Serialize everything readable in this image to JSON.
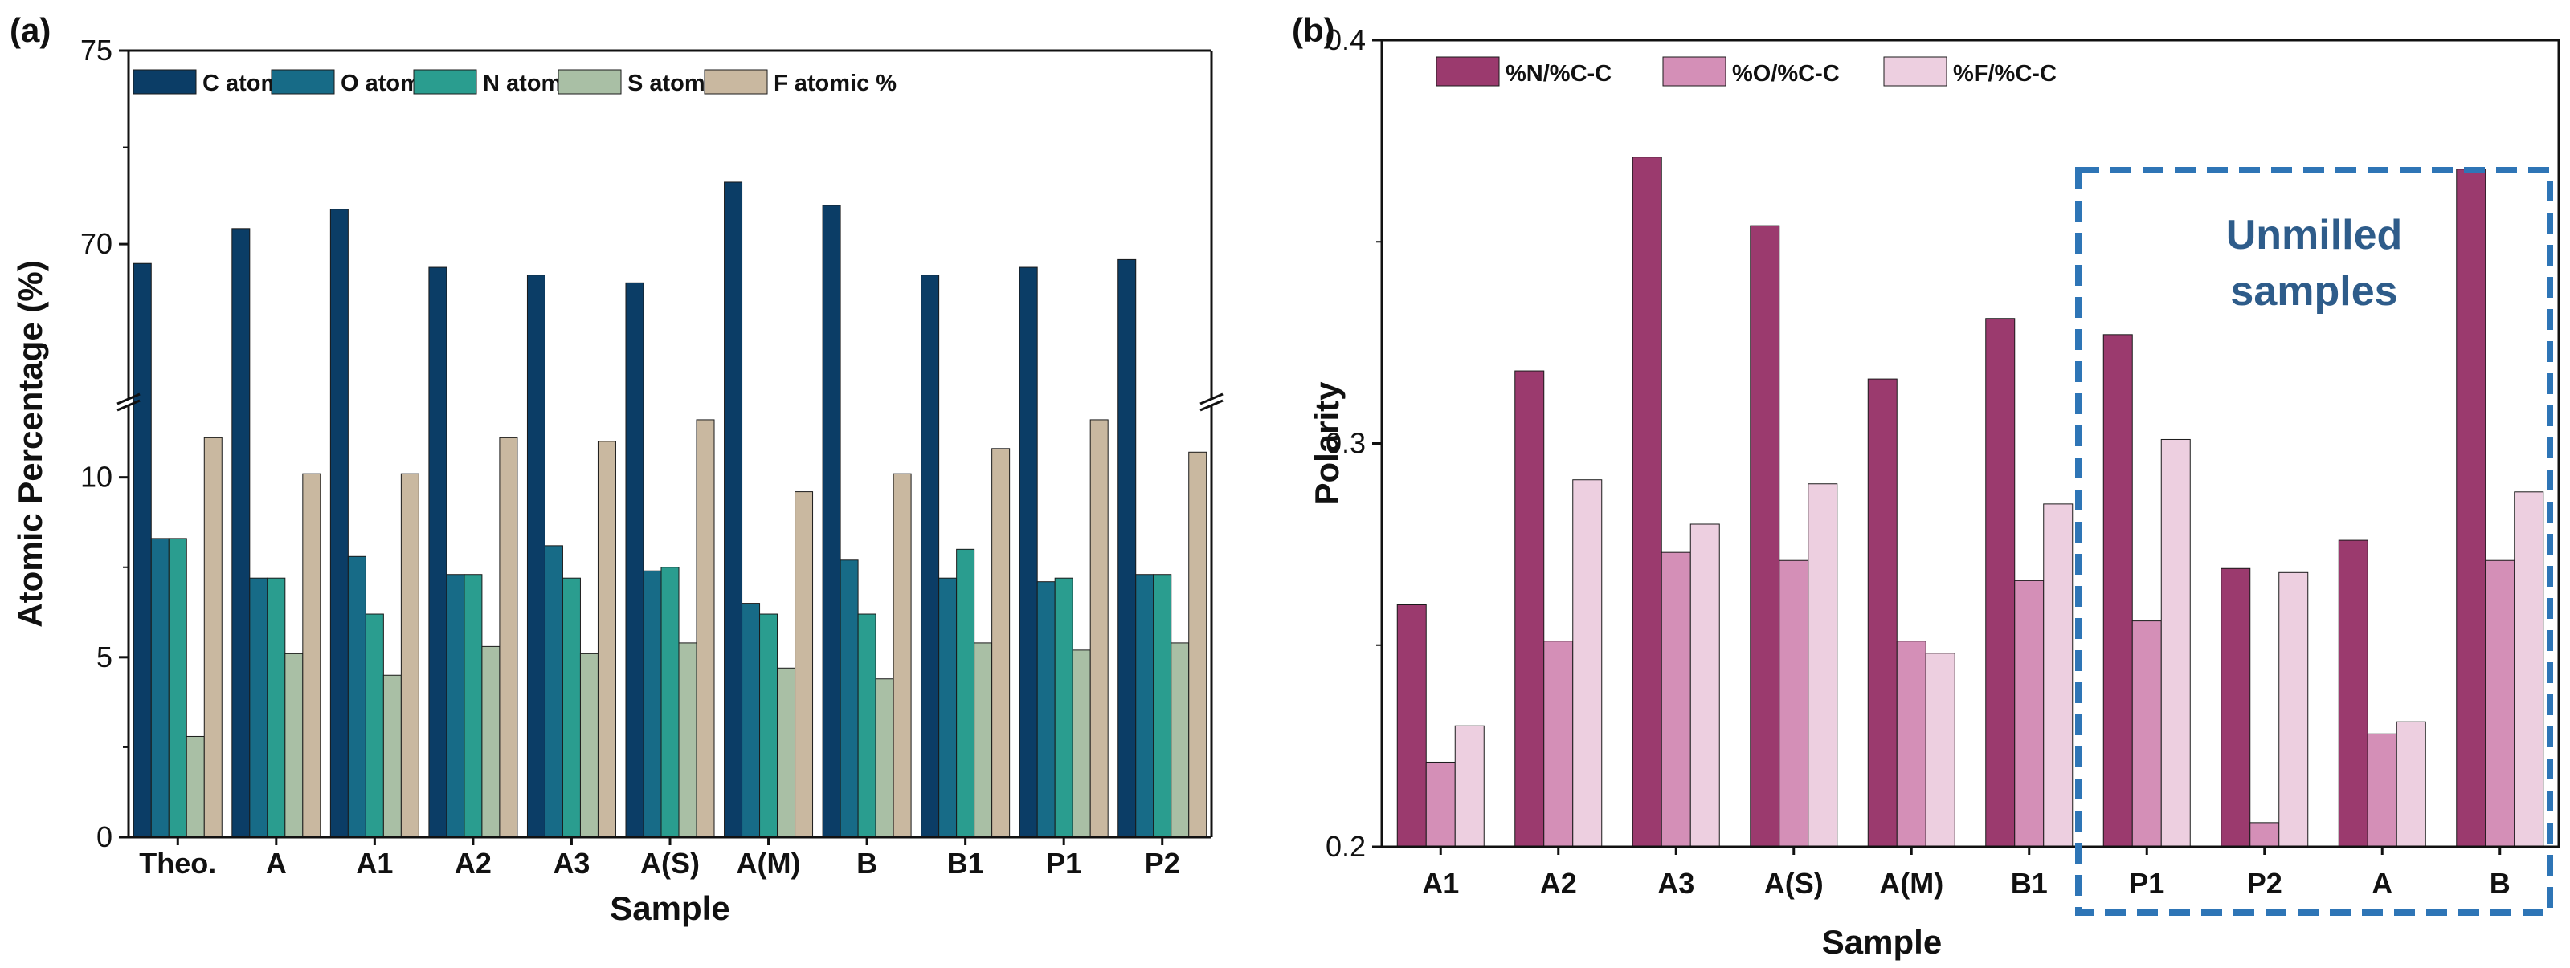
{
  "chart_data": [
    {
      "type": "bar",
      "panel_label": "(a)",
      "title": "",
      "xlabel": "Sample",
      "ylabel": "Atomic Percentage (%)",
      "categories": [
        "Theo.",
        "A",
        "A1",
        "A2",
        "A3",
        "A(S)",
        "A(M)",
        "B",
        "B1",
        "P1",
        "P2"
      ],
      "axis_break": {
        "lower_range": [
          0,
          12
        ],
        "upper_range": [
          66,
          75
        ]
      },
      "yticks_lower": [
        "0",
        "5",
        "10"
      ],
      "yticks_upper": [
        "70",
        "75"
      ],
      "grid": false,
      "legend_position": "top",
      "series": [
        {
          "name": "C atomic %",
          "color": "#0B3D66",
          "values": [
            69.5,
            70.4,
            70.9,
            69.4,
            69.2,
            69.0,
            71.6,
            71.0,
            69.2,
            69.4,
            69.6
          ]
        },
        {
          "name": "O atomic %",
          "color": "#176B87",
          "values": [
            8.3,
            7.2,
            7.8,
            7.3,
            8.1,
            7.4,
            6.5,
            7.7,
            7.2,
            7.1,
            7.3
          ]
        },
        {
          "name": "N atomic %",
          "color": "#2A9D8F",
          "values": [
            8.3,
            7.2,
            6.2,
            7.3,
            7.2,
            7.5,
            6.2,
            6.2,
            8.0,
            7.2,
            7.3
          ]
        },
        {
          "name": "S atomic %",
          "color": "#A9BFA5",
          "values": [
            2.8,
            5.1,
            4.5,
            5.3,
            5.1,
            5.4,
            4.7,
            4.4,
            5.4,
            5.2,
            5.4
          ]
        },
        {
          "name": "F atomic %",
          "color": "#C9B8A0",
          "values": [
            11.1,
            10.1,
            10.1,
            11.1,
            11.0,
            11.6,
            9.6,
            10.1,
            10.8,
            11.6,
            10.7
          ]
        }
      ]
    },
    {
      "type": "bar",
      "panel_label": "(b)",
      "title": "",
      "xlabel": "Sample",
      "ylabel": "Polarity",
      "categories": [
        "A1",
        "A2",
        "A3",
        "A(S)",
        "A(M)",
        "B1",
        "P1",
        "P2",
        "A",
        "B"
      ],
      "ylim": [
        0.2,
        0.4
      ],
      "yticks": [
        "0.2",
        "0.3",
        "0.4"
      ],
      "grid": false,
      "legend_position": "top-left",
      "annotation": {
        "text_lines": [
          "Unmilled",
          "samples"
        ],
        "covers_categories": [
          "P1",
          "P2",
          "A",
          "B"
        ],
        "style": "dashed box"
      },
      "series": [
        {
          "name": "%N/%C-C",
          "color": "#9B3A6E",
          "values": [
            0.26,
            0.318,
            0.371,
            0.354,
            0.316,
            0.331,
            0.327,
            0.269,
            0.276,
            0.368
          ]
        },
        {
          "name": "%O/%C-C",
          "color": "#D48FB7",
          "values": [
            0.221,
            0.251,
            0.273,
            0.271,
            0.251,
            0.266,
            0.256,
            0.206,
            0.228,
            0.271
          ]
        },
        {
          "name": "%F/%C-C",
          "color": "#EDCFE0",
          "values": [
            0.23,
            0.291,
            0.28,
            0.29,
            0.248,
            0.285,
            0.301,
            0.268,
            0.231,
            0.288
          ]
        }
      ]
    }
  ]
}
